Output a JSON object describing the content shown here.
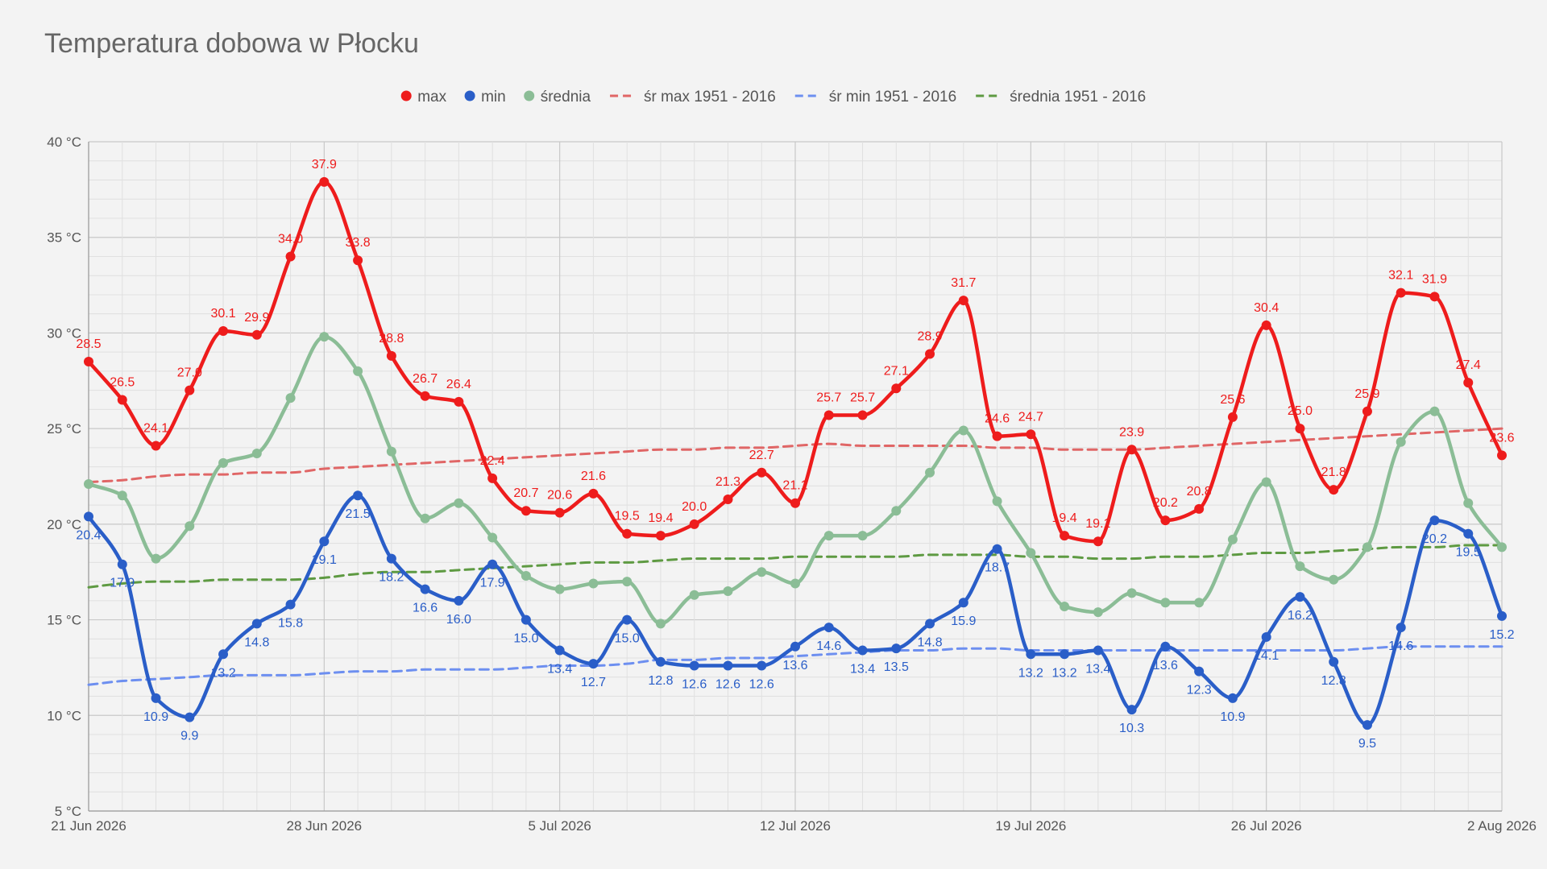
{
  "chart_data": {
    "type": "line",
    "title": "Temperatura dobowa w Płocku",
    "xlabel": "",
    "ylabel": "",
    "ylim": [
      5,
      40
    ],
    "y_ticks": [
      5,
      10,
      15,
      20,
      25,
      30,
      35,
      40
    ],
    "y_tick_labels": [
      "5 °C",
      "10 °C",
      "15 °C",
      "20 °C",
      "25 °C",
      "30 °C",
      "35 °C",
      "40 °C"
    ],
    "x_range_days": 42,
    "x_ticks": [
      {
        "day": 0,
        "label": "21 Jun 2026"
      },
      {
        "day": 7,
        "label": "28 Jun 2026"
      },
      {
        "day": 14,
        "label": "5 Jul 2026"
      },
      {
        "day": 21,
        "label": "12 Jul 2026"
      },
      {
        "day": 28,
        "label": "19 Jul 2026"
      },
      {
        "day": 35,
        "label": "26 Jul 2026"
      },
      {
        "day": 42,
        "label": "2 Aug 2026"
      }
    ],
    "grid": true,
    "legend_position": "top-center",
    "series": [
      {
        "name": "max",
        "color": "#ee1c1c",
        "style": "solid",
        "markers": true,
        "labels": true,
        "values": [
          28.5,
          26.5,
          24.1,
          27.0,
          30.1,
          29.9,
          34.0,
          37.9,
          33.8,
          28.8,
          26.7,
          26.4,
          22.4,
          20.7,
          20.6,
          21.6,
          19.5,
          19.4,
          20.0,
          21.3,
          22.7,
          21.1,
          25.7,
          25.7,
          27.1,
          28.9,
          31.7,
          24.6,
          24.7,
          19.4,
          19.1,
          23.9,
          20.2,
          20.8,
          25.6,
          30.4,
          25.0,
          21.8,
          25.9,
          32.1,
          31.9,
          27.4,
          23.6
        ]
      },
      {
        "name": "min",
        "color": "#2a5ec8",
        "style": "solid",
        "markers": true,
        "labels": true,
        "values": [
          20.4,
          17.9,
          10.9,
          9.9,
          13.2,
          14.8,
          15.8,
          19.1,
          21.5,
          18.2,
          16.6,
          16.0,
          17.9,
          15.0,
          13.4,
          12.7,
          15.0,
          12.8,
          12.6,
          12.6,
          12.6,
          13.6,
          14.6,
          13.4,
          13.5,
          14.8,
          15.9,
          18.7,
          13.2,
          13.2,
          13.4,
          10.3,
          13.6,
          12.3,
          10.9,
          14.1,
          16.2,
          12.8,
          9.5,
          14.6,
          20.2,
          19.5,
          15.2
        ]
      },
      {
        "name": "średnia",
        "color": "#8bbd96",
        "style": "solid",
        "markers": true,
        "labels": false,
        "values": [
          22.1,
          21.5,
          18.2,
          19.9,
          23.2,
          23.7,
          26.6,
          29.8,
          28.0,
          23.8,
          20.3,
          21.1,
          19.3,
          17.3,
          16.6,
          16.9,
          17.0,
          14.8,
          16.3,
          16.5,
          17.5,
          16.9,
          19.4,
          19.4,
          20.7,
          22.7,
          24.9,
          21.2,
          18.5,
          15.7,
          15.4,
          16.4,
          15.9,
          15.9,
          19.2,
          22.2,
          17.8,
          17.1,
          18.8,
          24.3,
          25.9,
          21.1,
          18.8
        ]
      },
      {
        "name": "śr max 1951 - 2016",
        "color": "#e06666",
        "style": "dashed",
        "markers": false,
        "labels": false,
        "values": [
          22.2,
          22.3,
          22.5,
          22.6,
          22.6,
          22.7,
          22.7,
          22.9,
          23.0,
          23.1,
          23.2,
          23.3,
          23.4,
          23.5,
          23.6,
          23.7,
          23.8,
          23.9,
          23.9,
          24.0,
          24.0,
          24.1,
          24.2,
          24.1,
          24.1,
          24.1,
          24.1,
          24.0,
          24.0,
          23.9,
          23.9,
          23.9,
          24.0,
          24.1,
          24.2,
          24.3,
          24.4,
          24.5,
          24.6,
          24.7,
          24.8,
          24.9,
          25.0
        ]
      },
      {
        "name": "śr min 1951 - 2016",
        "color": "#6d8ff0",
        "style": "dashed",
        "markers": false,
        "labels": false,
        "values": [
          11.6,
          11.8,
          11.9,
          12.0,
          12.1,
          12.1,
          12.1,
          12.2,
          12.3,
          12.3,
          12.4,
          12.4,
          12.4,
          12.5,
          12.6,
          12.6,
          12.7,
          12.9,
          12.9,
          13.0,
          13.0,
          13.1,
          13.2,
          13.3,
          13.4,
          13.4,
          13.5,
          13.5,
          13.4,
          13.4,
          13.4,
          13.4,
          13.4,
          13.4,
          13.4,
          13.4,
          13.4,
          13.4,
          13.5,
          13.6,
          13.6,
          13.6,
          13.6
        ]
      },
      {
        "name": "średnia 1951 - 2016",
        "color": "#5e9a42",
        "style": "dashed",
        "markers": false,
        "labels": false,
        "values": [
          16.7,
          16.9,
          17.0,
          17.0,
          17.1,
          17.1,
          17.1,
          17.2,
          17.4,
          17.5,
          17.5,
          17.6,
          17.7,
          17.8,
          17.9,
          18.0,
          18.0,
          18.1,
          18.2,
          18.2,
          18.2,
          18.3,
          18.3,
          18.3,
          18.3,
          18.4,
          18.4,
          18.4,
          18.3,
          18.3,
          18.2,
          18.2,
          18.3,
          18.3,
          18.4,
          18.5,
          18.5,
          18.6,
          18.7,
          18.8,
          18.8,
          18.9,
          18.9
        ]
      }
    ]
  }
}
